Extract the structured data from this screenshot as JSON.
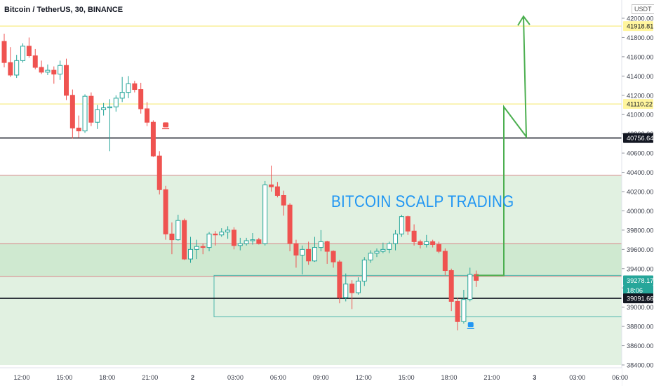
{
  "header": {
    "symbol_title": "Bitcoin / TetherUS, 30, BINANCE",
    "currency": "USDT"
  },
  "annotation": {
    "headline": "BITCOIN SCALP TRADING"
  },
  "colors": {
    "up_candle": "#26a69a",
    "down_candle": "#ef5350",
    "zone_fill": "#c8e6c9",
    "yellow_line": "#f5e663",
    "arrow_green": "#4caf50",
    "label_yellow": "#fff59d",
    "current_price_tag": "#26a69a"
  },
  "chart_data": {
    "type": "candlestick",
    "title": "Bitcoin / TetherUS, 30, BINANCE",
    "ylim": [
      38400,
      42000
    ],
    "y_ticks": [
      "42000.00",
      "41800.00",
      "41600.00",
      "41400.00",
      "41200.00",
      "41000.00",
      "40800.00",
      "40600.00",
      "40400.00",
      "40200.00",
      "40000.00",
      "39800.00",
      "39600.00",
      "39400.00",
      "39200.00",
      "39000.00",
      "38800.00",
      "38600.00",
      "38400.00"
    ],
    "x_ticks": [
      "12:00",
      "15:00",
      "18:00",
      "21:00",
      "2",
      "03:00",
      "06:00",
      "09:00",
      "12:00",
      "15:00",
      "18:00",
      "21:00",
      "3",
      "03:00",
      "06:00"
    ],
    "price_labels": [
      {
        "value": "41918.81",
        "style": "yellow"
      },
      {
        "value": "41110.22",
        "style": "yellow"
      },
      {
        "value": "40756.64",
        "style": "black"
      },
      {
        "value": "39278.17",
        "style": "current"
      },
      {
        "value": "18:06",
        "style": "countdown"
      },
      {
        "value": "39091.66",
        "style": "black"
      }
    ],
    "horizontal_levels": [
      {
        "price": 41918.81,
        "kind": "yellow"
      },
      {
        "price": 41110.22,
        "kind": "yellow"
      },
      {
        "price": 40756.64,
        "kind": "black"
      },
      {
        "price": 39091.66,
        "kind": "black"
      }
    ],
    "zones": [
      {
        "top": 40370,
        "bottom": 38400,
        "kind": "support-zone"
      },
      {
        "top": 39660,
        "bottom": 39320,
        "kind": "core-zone"
      }
    ],
    "candles": [
      [
        41760,
        41840,
        41490,
        41540
      ],
      [
        41540,
        41700,
        41390,
        41410
      ],
      [
        41410,
        41620,
        41380,
        41560
      ],
      [
        41560,
        41740,
        41540,
        41710
      ],
      [
        41710,
        41800,
        41590,
        41610
      ],
      [
        41610,
        41680,
        41470,
        41490
      ],
      [
        41490,
        41560,
        41420,
        41440
      ],
      [
        41440,
        41520,
        41410,
        41460
      ],
      [
        41460,
        41500,
        41320,
        41420
      ],
      [
        41420,
        41560,
        41360,
        41510
      ],
      [
        41510,
        41580,
        41150,
        41200
      ],
      [
        41200,
        41260,
        40750,
        40860
      ],
      [
        40860,
        40990,
        40760,
        40830
      ],
      [
        40830,
        41210,
        40810,
        41190
      ],
      [
        41190,
        41230,
        40880,
        40920
      ],
      [
        40920,
        41100,
        40850,
        41050
      ],
      [
        41050,
        41120,
        40990,
        41070
      ],
      [
        41070,
        41160,
        40620,
        41080
      ],
      [
        41080,
        41200,
        41030,
        41170
      ],
      [
        41170,
        41390,
        41130,
        41230
      ],
      [
        41230,
        41400,
        41170,
        41320
      ],
      [
        41320,
        41350,
        41230,
        41260
      ],
      [
        41260,
        41330,
        41010,
        41060
      ],
      [
        41060,
        41130,
        40880,
        40920
      ],
      [
        40920,
        40940,
        40560,
        40570
      ],
      [
        40570,
        40620,
        40170,
        40220
      ],
      [
        40220,
        40260,
        39700,
        39760
      ],
      [
        39760,
        39880,
        39550,
        39700
      ],
      [
        39700,
        39960,
        39690,
        39900
      ],
      [
        39900,
        39920,
        39490,
        39500
      ],
      [
        39500,
        39730,
        39460,
        39600
      ],
      [
        39600,
        39700,
        39500,
        39630
      ],
      [
        39630,
        39660,
        39550,
        39620
      ],
      [
        39620,
        39780,
        39580,
        39760
      ],
      [
        39760,
        39790,
        39640,
        39750
      ],
      [
        39750,
        39820,
        39730,
        39780
      ],
      [
        39780,
        39840,
        39710,
        39800
      ],
      [
        39800,
        39830,
        39600,
        39640
      ],
      [
        39640,
        39720,
        39590,
        39660
      ],
      [
        39660,
        39720,
        39640,
        39690
      ],
      [
        39690,
        39770,
        39650,
        39700
      ],
      [
        39700,
        39720,
        39650,
        39660
      ],
      [
        39660,
        40310,
        39640,
        40270
      ],
      [
        40270,
        40470,
        40200,
        40250
      ],
      [
        40250,
        40300,
        40140,
        40160
      ],
      [
        40160,
        40210,
        39950,
        40060
      ],
      [
        40060,
        40080,
        39580,
        39660
      ],
      [
        39660,
        39700,
        39410,
        39540
      ],
      [
        39540,
        39640,
        39340,
        39600
      ],
      [
        39600,
        39680,
        39440,
        39480
      ],
      [
        39480,
        39730,
        39470,
        39620
      ],
      [
        39620,
        39800,
        39580,
        39680
      ],
      [
        39680,
        39690,
        39450,
        39580
      ],
      [
        39580,
        39590,
        39410,
        39470
      ],
      [
        39470,
        39490,
        39040,
        39100
      ],
      [
        39100,
        39350,
        39060,
        39240
      ],
      [
        39240,
        39280,
        38980,
        39150
      ],
      [
        39150,
        39310,
        39130,
        39270
      ],
      [
        39270,
        39520,
        39220,
        39490
      ],
      [
        39490,
        39590,
        39460,
        39560
      ],
      [
        39560,
        39610,
        39520,
        39580
      ],
      [
        39580,
        39670,
        39560,
        39600
      ],
      [
        39600,
        39680,
        39560,
        39660
      ],
      [
        39660,
        39800,
        39590,
        39760
      ],
      [
        39760,
        39960,
        39730,
        39940
      ],
      [
        39940,
        39950,
        39750,
        39790
      ],
      [
        39790,
        39860,
        39640,
        39680
      ],
      [
        39680,
        39700,
        39610,
        39650
      ],
      [
        39650,
        39750,
        39620,
        39680
      ],
      [
        39680,
        39700,
        39620,
        39650
      ],
      [
        39650,
        39680,
        39560,
        39580
      ],
      [
        39580,
        39610,
        39330,
        39380
      ],
      [
        39380,
        39400,
        38960,
        39060
      ],
      [
        39060,
        39100,
        38760,
        38850
      ],
      [
        38850,
        39180,
        38830,
        39080
      ],
      [
        39080,
        39410,
        39060,
        39340
      ],
      [
        39340,
        39380,
        39210,
        39278.17
      ]
    ]
  }
}
